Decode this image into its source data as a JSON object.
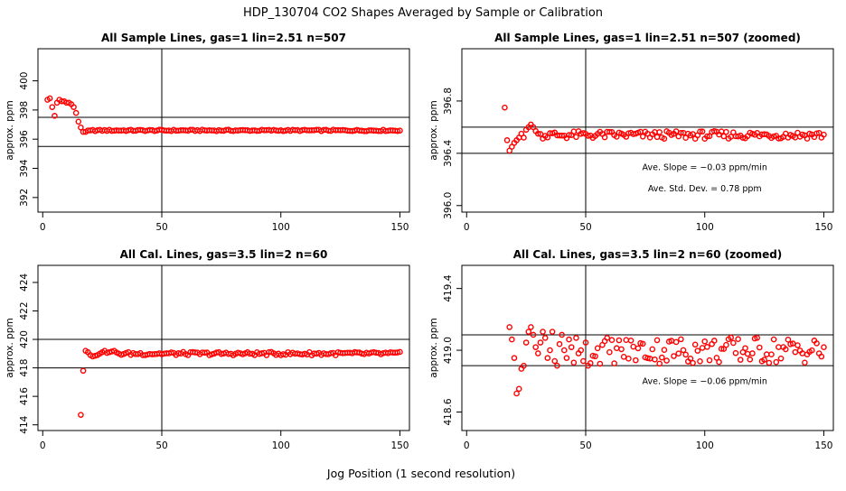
{
  "title": "HDP_130704  CO2 Shapes Averaged by Sample or Calibration",
  "xlabel": "Jog Position (1 second resolution)",
  "chart_data": [
    {
      "type": "scatter",
      "title": "All Sample Lines, gas=1 lin=2.51 n=507",
      "ylabel": "approx. ppm",
      "xlim": [
        -2,
        154
      ],
      "ylim": [
        391.0,
        402.2
      ],
      "xticks": [
        0,
        50,
        100,
        150
      ],
      "yticks": [
        392,
        394,
        396,
        398,
        400
      ],
      "hlines": [
        397.5,
        395.5
      ],
      "vline": 50,
      "grid": false,
      "points": [
        [
          2,
          398.7
        ],
        [
          3,
          398.8
        ],
        [
          4,
          398.2
        ],
        [
          5,
          397.6
        ],
        [
          6,
          398.5
        ],
        [
          7,
          398.7
        ],
        [
          8,
          398.6
        ],
        [
          9,
          398.6
        ],
        [
          10,
          398.5
        ],
        [
          11,
          398.5
        ],
        [
          12,
          398.4
        ],
        [
          13,
          398.2
        ],
        [
          14,
          397.8
        ],
        [
          15,
          397.2
        ],
        [
          16,
          396.8
        ],
        [
          17,
          396.5
        ],
        [
          18,
          396.5
        ],
        [
          19,
          396.6
        ],
        [
          20,
          396.6
        ]
      ],
      "flat": {
        "from": 21,
        "to": 150,
        "base": 396.6,
        "amp": 0.05
      },
      "annotations": []
    },
    {
      "type": "scatter",
      "title": "All Sample Lines, gas=1 lin=2.51 n=507 (zoomed)",
      "ylabel": "approx. ppm",
      "xlim": [
        -2,
        154
      ],
      "ylim": [
        395.95,
        397.2
      ],
      "xticks": [
        0,
        50,
        100,
        150
      ],
      "yticks": [
        396.0,
        396.4,
        396.8
      ],
      "hlines": [
        396.6,
        396.4
      ],
      "vline": 50,
      "grid": false,
      "points": [
        [
          16,
          396.75
        ],
        [
          17,
          396.5
        ],
        [
          18,
          396.42
        ],
        [
          19,
          396.45
        ],
        [
          20,
          396.48
        ],
        [
          21,
          396.5
        ],
        [
          22,
          396.52
        ],
        [
          23,
          396.55
        ],
        [
          24,
          396.52
        ],
        [
          25,
          396.58
        ],
        [
          26,
          396.6
        ],
        [
          27,
          396.62
        ],
        [
          28,
          396.6
        ],
        [
          29,
          396.57
        ],
        [
          30,
          396.55
        ]
      ],
      "flat": {
        "from": 31,
        "to": 150,
        "base": 396.54,
        "amp": 0.03
      },
      "annotations": [
        {
          "text": "Ave. Slope =  −0.03  ppm/min",
          "x": 100,
          "y": 396.27
        },
        {
          "text": "Ave. Std. Dev. =  0.78  ppm",
          "x": 100,
          "y": 396.11
        }
      ]
    },
    {
      "type": "scatter",
      "title": "All Cal. Lines, gas=3.5 lin=2 n=60",
      "ylabel": "approx. ppm",
      "xlim": [
        -2,
        154
      ],
      "ylim": [
        413.6,
        425.2
      ],
      "xticks": [
        0,
        50,
        100,
        150
      ],
      "yticks": [
        414,
        416,
        418,
        420,
        422,
        424
      ],
      "hlines": [
        420.0,
        418.0
      ],
      "vline": 50,
      "grid": false,
      "points": [
        [
          16,
          414.7
        ],
        [
          17,
          417.8
        ],
        [
          18,
          419.2
        ],
        [
          19,
          419.1
        ],
        [
          20,
          418.9
        ],
        [
          21,
          418.8
        ],
        [
          22,
          418.85
        ],
        [
          23,
          418.9
        ],
        [
          24,
          419.0
        ],
        [
          25,
          419.1
        ],
        [
          26,
          419.2
        ],
        [
          27,
          419.05
        ],
        [
          28,
          419.1
        ],
        [
          29,
          419.15
        ],
        [
          30,
          419.2
        ]
      ],
      "flat": {
        "from": 31,
        "to": 150,
        "base": 419.0,
        "amp": 0.12
      },
      "annotations": []
    },
    {
      "type": "scatter",
      "title": "All Cal. Lines, gas=3.5 lin=2 n=60 (zoomed)",
      "ylabel": "approx. ppm",
      "xlim": [
        -2,
        154
      ],
      "ylim": [
        418.48,
        419.55
      ],
      "xticks": [
        0,
        50,
        100,
        150
      ],
      "yticks": [
        418.6,
        419.0,
        419.4
      ],
      "hlines": [
        419.1,
        418.9
      ],
      "vline": 50,
      "grid": false,
      "points": [
        [
          18,
          419.15
        ],
        [
          19,
          419.07
        ],
        [
          20,
          418.95
        ],
        [
          21,
          418.72
        ],
        [
          22,
          418.75
        ],
        [
          23,
          418.88
        ],
        [
          24,
          418.9
        ],
        [
          25,
          419.05
        ],
        [
          26,
          419.12
        ],
        [
          27,
          419.15
        ],
        [
          28,
          419.1
        ],
        [
          29,
          419.02
        ],
        [
          30,
          418.98
        ],
        [
          31,
          419.05
        ],
        [
          32,
          419.12
        ],
        [
          33,
          419.08
        ],
        [
          34,
          418.95
        ],
        [
          35,
          419.0
        ],
        [
          36,
          419.12
        ],
        [
          37,
          418.93
        ],
        [
          38,
          418.9
        ],
        [
          39,
          419.04
        ],
        [
          40,
          419.1
        ],
        [
          41,
          419.0
        ],
        [
          42,
          418.95
        ],
        [
          43,
          419.07
        ],
        [
          44,
          419.02
        ],
        [
          45,
          418.92
        ],
        [
          46,
          419.08
        ],
        [
          47,
          418.98
        ],
        [
          48,
          419.0
        ],
        [
          49,
          418.93
        ],
        [
          50,
          419.05
        ],
        [
          51,
          418.9
        ]
      ],
      "flat": {
        "from": 52,
        "to": 150,
        "base": 419.0,
        "amp": 0.09
      },
      "annotations": [
        {
          "text": "Ave. Slope =  −0.06  ppm/min",
          "x": 100,
          "y": 418.78
        }
      ]
    }
  ]
}
